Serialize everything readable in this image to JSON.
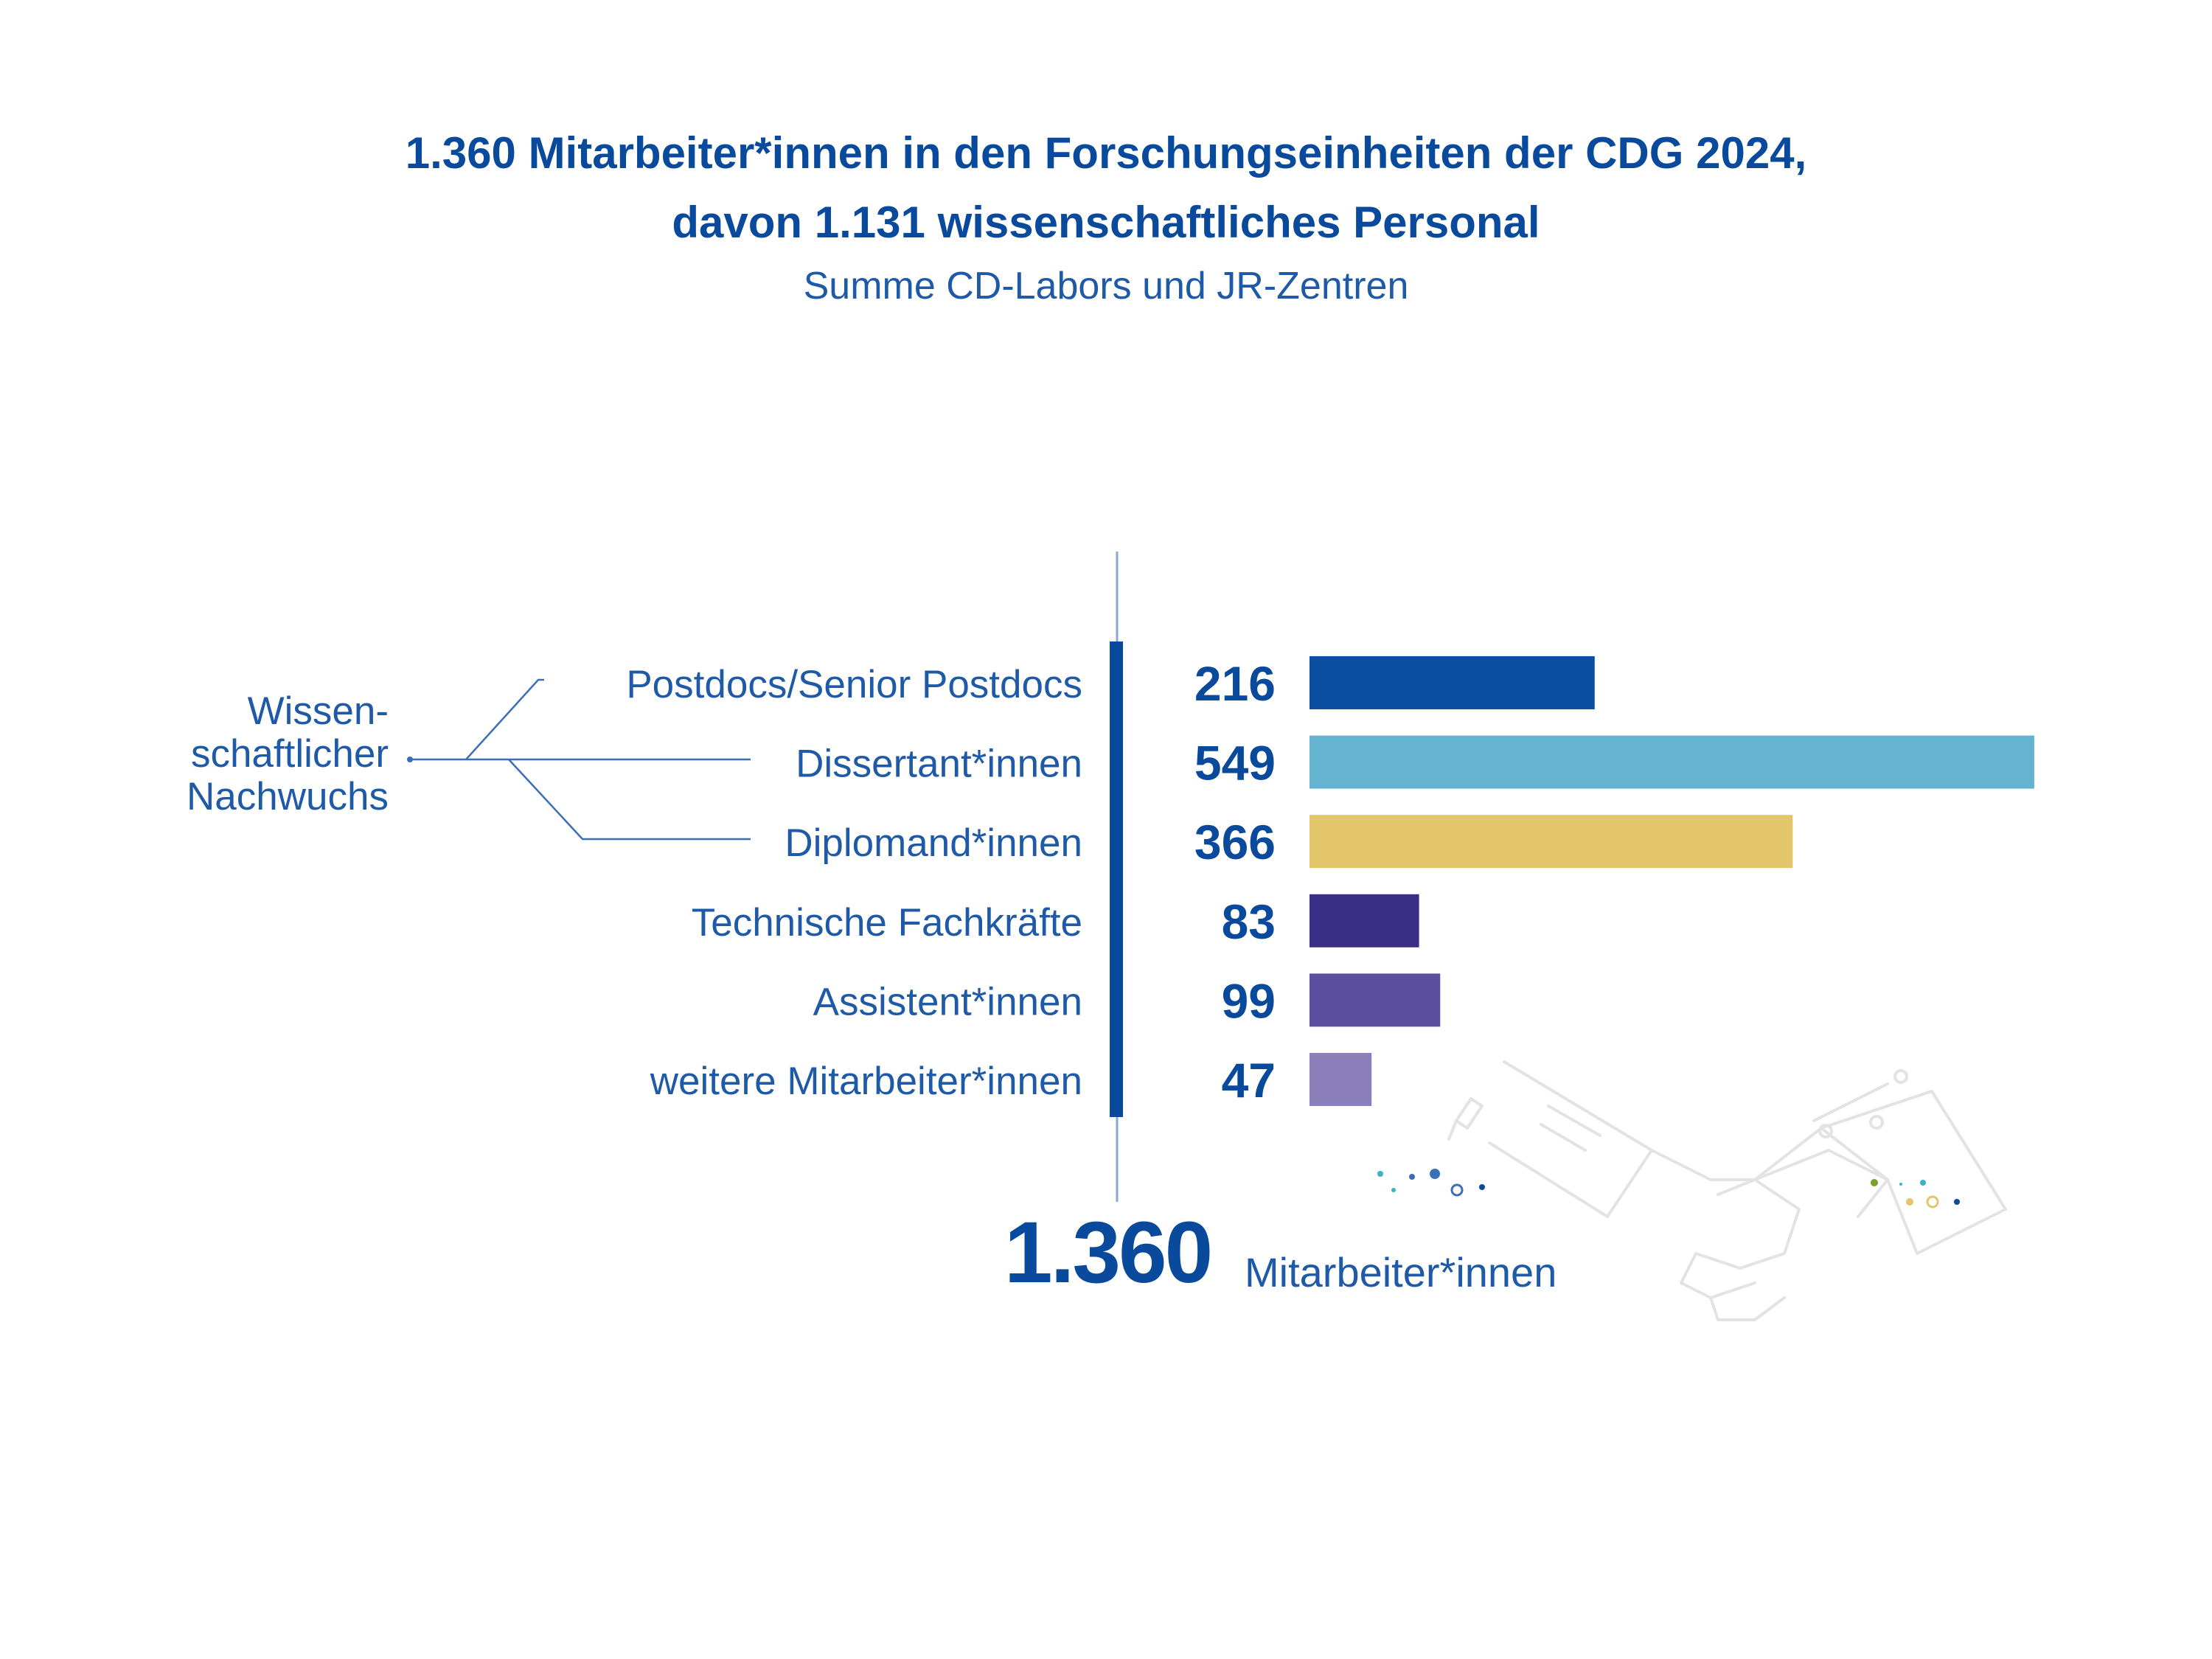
{
  "title_line1": "1.360 Mitarbeiter*innen in den Forschungseinheiten der CDG 2024,",
  "title_line2": "davon 1.131 wissenschaftliches Personal",
  "subtitle": "Summe CD-Labors und JR-Zentren",
  "group_label": [
    "Wissen-",
    "schaftlicher",
    "Nachwuchs"
  ],
  "total": {
    "value": "1.360",
    "label": "Mitarbeiter*innen"
  },
  "colors": {
    "text": "#0a4a9c",
    "axis": "#0a4a9c",
    "postdocs": "#0a4f9f",
    "dissertanten": "#64b3d1",
    "diplomanden": "#e3c66b",
    "technische": "#3a2f87",
    "assistenten": "#5c4f9f",
    "weitere": "#8a7fba"
  },
  "chart_data": {
    "type": "bar",
    "orientation": "horizontal",
    "categories": [
      "Postdocs/Senior Postdocs",
      "Dissertant*innen",
      "Diplomand*innen",
      "Technische Fachkräfte",
      "Assistent*innen",
      "weitere Mitarbeiter*innen"
    ],
    "values": [
      216,
      549,
      366,
      83,
      99,
      47
    ],
    "bar_colors": [
      "#0a4f9f",
      "#64b3d1",
      "#e3c66b",
      "#3a2f87",
      "#5c4f9f",
      "#8a7fba"
    ],
    "grouped_categories": [
      0,
      1,
      2
    ],
    "xlim": [
      0,
      549
    ],
    "grid": false,
    "legend": "none"
  }
}
